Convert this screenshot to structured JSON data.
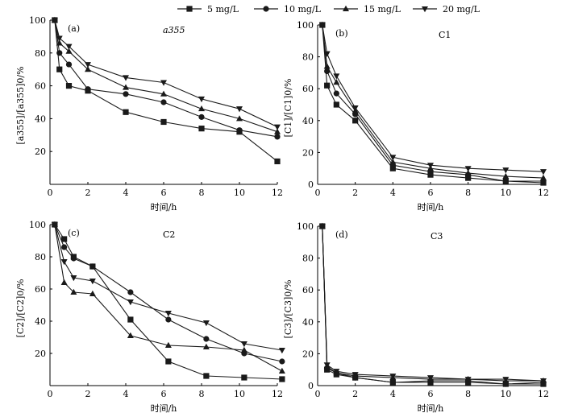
{
  "legend": {
    "entries": [
      {
        "name": "5 mg/L",
        "marker": "square"
      },
      {
        "name": "10 mg/L",
        "marker": "circle"
      },
      {
        "name": "15 mg/L",
        "marker": "triangle-up"
      },
      {
        "name": "20 mg/L",
        "marker": "triangle-down"
      }
    ]
  },
  "chart_data": [
    {
      "type": "line",
      "tag": "(a)",
      "title": "a355",
      "xlabel": "时间/h",
      "ylabel": "[a355]/[a355]0/%",
      "xlim": [
        0,
        12
      ],
      "ylim": [
        0,
        100
      ],
      "xticks": [
        0,
        2,
        4,
        6,
        8,
        10,
        12
      ],
      "yticks": [
        20,
        40,
        60,
        80,
        100
      ],
      "series": [
        {
          "name": "5 mg/L",
          "x": [
            0.25,
            0.5,
            1,
            2,
            4,
            6,
            8,
            10,
            12
          ],
          "y": [
            100,
            70,
            60,
            57,
            44,
            38,
            34,
            32,
            14
          ]
        },
        {
          "name": "10 mg/L",
          "x": [
            0.25,
            0.5,
            1,
            2,
            4,
            6,
            8,
            10,
            12
          ],
          "y": [
            100,
            80,
            73,
            58,
            55,
            50,
            41,
            33,
            29
          ]
        },
        {
          "name": "15 mg/L",
          "x": [
            0.25,
            0.5,
            1,
            2,
            4,
            6,
            8,
            10,
            12
          ],
          "y": [
            100,
            86,
            81,
            70,
            59,
            55,
            46,
            40,
            32
          ]
        },
        {
          "name": "20 mg/L",
          "x": [
            0.25,
            0.5,
            1,
            2,
            4,
            6,
            8,
            10,
            12
          ],
          "y": [
            100,
            89,
            84,
            73,
            65,
            62,
            52,
            46,
            35
          ]
        }
      ]
    },
    {
      "type": "line",
      "tag": "(b)",
      "title": "C1",
      "xlabel": "时间/h",
      "ylabel": "[C1]/[C1]0/%",
      "xlim": [
        0,
        12
      ],
      "ylim": [
        0,
        100
      ],
      "xticks": [
        0,
        2,
        4,
        6,
        8,
        10,
        12
      ],
      "yticks": [
        0,
        20,
        40,
        60,
        80,
        100
      ],
      "series": [
        {
          "name": "5 mg/L",
          "x": [
            0.25,
            0.5,
            1,
            2,
            4,
            6,
            8,
            10,
            12
          ],
          "y": [
            100,
            62,
            50,
            40,
            10,
            6,
            4,
            2,
            1
          ]
        },
        {
          "name": "10 mg/L",
          "x": [
            0.25,
            0.5,
            1,
            2,
            4,
            6,
            8,
            10,
            12
          ],
          "y": [
            100,
            71,
            57,
            44,
            12,
            8,
            6,
            2,
            2
          ]
        },
        {
          "name": "15 mg/L",
          "x": [
            0.25,
            0.5,
            1,
            2,
            4,
            6,
            8,
            10,
            12
          ],
          "y": [
            100,
            74,
            64,
            46,
            14,
            10,
            7,
            5,
            4
          ]
        },
        {
          "name": "20 mg/L",
          "x": [
            0.25,
            0.5,
            1,
            2,
            4,
            6,
            8,
            10,
            12
          ],
          "y": [
            100,
            82,
            68,
            48,
            17,
            12,
            10,
            9,
            8
          ]
        }
      ]
    },
    {
      "type": "line",
      "tag": "(c)",
      "title": "C2",
      "xlabel": "时间/h",
      "ylabel": "[C2]/[C2]0/%",
      "xlim": [
        0,
        12
      ],
      "ylim": [
        0,
        100
      ],
      "xticks": [
        0,
        2,
        4,
        6,
        8,
        10,
        12
      ],
      "yticks": [
        20,
        40,
        60,
        80,
        100
      ],
      "series": [
        {
          "name": "5 mg/L",
          "x": [
            0.25,
            0.75,
            1.25,
            2.25,
            4.25,
            6.25,
            8.25,
            10.25,
            12.25
          ],
          "y": [
            100,
            91,
            80,
            74,
            41,
            15,
            6,
            5,
            4
          ]
        },
        {
          "name": "10 mg/L",
          "x": [
            0.25,
            0.75,
            1.25,
            2.25,
            4.25,
            6.25,
            8.25,
            10.25,
            12.25
          ],
          "y": [
            100,
            86,
            79,
            74,
            58,
            41,
            29,
            20,
            15
          ]
        },
        {
          "name": "15 mg/L",
          "x": [
            0.25,
            0.75,
            1.25,
            2.25,
            4.25,
            6.25,
            8.25,
            10.25,
            12.25
          ],
          "y": [
            100,
            64,
            58,
            57,
            31,
            25,
            24,
            22,
            9
          ]
        },
        {
          "name": "20 mg/L",
          "x": [
            0.25,
            0.75,
            1.25,
            2.25,
            4.25,
            6.25,
            8.25,
            10.25,
            12.25
          ],
          "y": [
            100,
            77,
            67,
            65,
            52,
            45,
            39,
            26,
            22
          ]
        }
      ]
    },
    {
      "type": "line",
      "tag": "(d)",
      "title": "C3",
      "xlabel": "时间/h",
      "ylabel": "[C3]/[C3]0/%",
      "xlim": [
        0,
        12
      ],
      "ylim": [
        0,
        100
      ],
      "xticks": [
        0,
        2,
        4,
        6,
        8,
        10,
        12
      ],
      "yticks": [
        0,
        20,
        40,
        60,
        80,
        100
      ],
      "series": [
        {
          "name": "5 mg/L",
          "x": [
            0.25,
            0.5,
            1,
            2,
            4,
            6,
            8,
            10,
            12
          ],
          "y": [
            100,
            10,
            7,
            5,
            2,
            2,
            2,
            1,
            1
          ]
        },
        {
          "name": "10 mg/L",
          "x": [
            0.25,
            0.5,
            1,
            2,
            4,
            6,
            8,
            10,
            12
          ],
          "y": [
            100,
            11,
            8,
            5,
            2,
            3,
            3,
            1,
            2
          ]
        },
        {
          "name": "15 mg/L",
          "x": [
            0.25,
            0.5,
            1,
            2,
            4,
            6,
            8,
            10,
            12
          ],
          "y": [
            100,
            12,
            8,
            6,
            5,
            4,
            4,
            3,
            3
          ]
        },
        {
          "name": "20 mg/L",
          "x": [
            0.25,
            0.5,
            1,
            2,
            4,
            6,
            8,
            10,
            12
          ],
          "y": [
            100,
            13,
            9,
            7,
            6,
            5,
            4,
            4,
            3
          ]
        }
      ]
    }
  ]
}
